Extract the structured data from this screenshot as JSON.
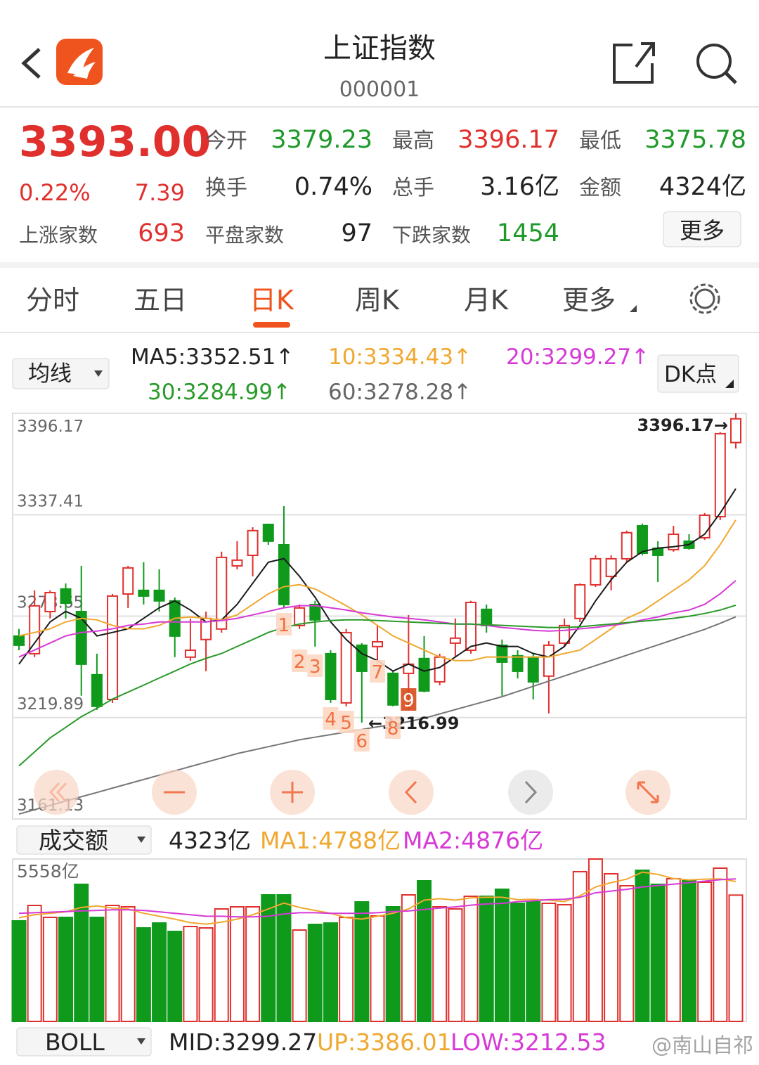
{
  "header": {
    "title": "上证指数",
    "code": "000001"
  },
  "quote": {
    "price": "3393.00",
    "change_pct": "0.22%",
    "change": "7.39",
    "stats": [
      {
        "label": "今开",
        "value": "3379.23"
      },
      {
        "label": "最高",
        "value": "3396.17"
      },
      {
        "label": "最低",
        "value": "3375.78"
      },
      {
        "label": "换手",
        "value": "0.74%"
      },
      {
        "label": "总手",
        "value": "3.16亿"
      },
      {
        "label": "金额",
        "value": "4324亿"
      },
      {
        "label": "上涨家数",
        "value": "693"
      },
      {
        "label": "平盘家数",
        "value": "97"
      },
      {
        "label": "下跌家数",
        "value": "1454"
      }
    ],
    "more": "更多"
  },
  "tabs": [
    "分时",
    "五日",
    "日K",
    "周K",
    "月K",
    "更多"
  ],
  "indicator_row": {
    "selector": "均线",
    "ma_labels": [
      "MA5:3352.51↑",
      "10:3334.43↑",
      "20:3299.27↑",
      "30:3284.99↑",
      "60:3278.28↑"
    ],
    "dk": "DK点"
  },
  "volume_row": {
    "selector": "成交额",
    "labels": [
      "4323亿",
      "MA1:4788亿",
      "MA2:4876亿"
    ]
  },
  "boll_row": {
    "selector": "BOLL",
    "labels": [
      "MID:3299.27",
      "UP:3386.01",
      "LOW:3212.53"
    ]
  },
  "watermark": "@南山自祁",
  "chart_data": [
    {
      "type": "candlestick",
      "ylim": [
        3161.13,
        3396.17
      ],
      "yticks": [
        3396.17,
        3337.41,
        3278.65,
        3219.89,
        3161.13
      ],
      "grid": true,
      "up_color": "#e0302d",
      "down_color": "#0f9a1c",
      "open": [
        3267.1,
        3256.9,
        3281.3,
        3294.4,
        3281.3,
        3244.7,
        3230.4,
        3291.5,
        3293.6,
        3293.6,
        3287.5,
        3254.9,
        3265.1,
        3271.2,
        3307.8,
        3313.9,
        3331.8,
        3320.0,
        3273.2,
        3285.4,
        3256.9,
        3228.4,
        3261.8,
        3261.0,
        3245.5,
        3245.5,
        3254.1,
        3240.6,
        3263.0,
        3258.9,
        3282.6,
        3261.8,
        3255.7,
        3254.9,
        3243.9,
        3263.0,
        3277.3,
        3296.8,
        3301.7,
        3311.9,
        3331.0,
        3318.0,
        3317.2,
        3322.1,
        3324.1,
        3336.3,
        3379.23
      ],
      "high": [
        3271.2,
        3293.6,
        3293.6,
        3297.6,
        3307.8,
        3256.9,
        3291.5,
        3307.8,
        3309.9,
        3305.8,
        3289.5,
        3277.3,
        3281.3,
        3316.0,
        3322.1,
        3330.2,
        3332.3,
        3342.4,
        3285.4,
        3287.5,
        3258.9,
        3271.2,
        3263.0,
        3273.2,
        3246.7,
        3279.3,
        3267.1,
        3256.9,
        3277.3,
        3287.5,
        3285.4,
        3265.1,
        3258.9,
        3256.9,
        3264.2,
        3277.3,
        3297.6,
        3313.9,
        3313.9,
        3328.2,
        3332.3,
        3322.1,
        3331.0,
        3326.1,
        3338.4,
        3385.2,
        3396.17
      ],
      "low": [
        3258.9,
        3254.9,
        3277.3,
        3277.3,
        3232.5,
        3224.3,
        3228.4,
        3283.4,
        3285.4,
        3281.3,
        3254.9,
        3252.8,
        3246.7,
        3269.1,
        3305.8,
        3301.7,
        3320.0,
        3283.4,
        3271.2,
        3261.0,
        3228.4,
        3226.4,
        3216.99,
        3250.8,
        3226.4,
        3224.3,
        3234.5,
        3238.6,
        3254.9,
        3256.9,
        3269.1,
        3232.5,
        3242.6,
        3230.4,
        3222.3,
        3261.0,
        3275.2,
        3295.6,
        3293.6,
        3309.9,
        3313.9,
        3298.4,
        3316.0,
        3317.2,
        3322.9,
        3334.3,
        3375.78
      ],
      "close": [
        3261.8,
        3284.6,
        3292.3,
        3286.2,
        3250.8,
        3226.4,
        3290.3,
        3306.6,
        3290.3,
        3287.5,
        3267.1,
        3258.9,
        3277.3,
        3312.7,
        3311.1,
        3328.2,
        3322.1,
        3285.4,
        3283.4,
        3276.5,
        3230.4,
        3269.1,
        3246.7,
        3263.8,
        3227.2,
        3250.8,
        3235.3,
        3254.9,
        3265.9,
        3286.6,
        3273.2,
        3252.0,
        3246.7,
        3240.6,
        3261.8,
        3273.2,
        3296.8,
        3311.9,
        3311.9,
        3327.0,
        3315.1,
        3313.9,
        3326.1,
        3318.0,
        3337.1,
        3384.4,
        3393
      ],
      "lines": [
        {
          "color": "#1a1a1a",
          "values": [
            3250.9,
            3263.1,
            3275.3,
            3281.4,
            3277.4,
            3267.2,
            3269.2,
            3271.3,
            3277.4,
            3283.5,
            3287.5,
            3282.2,
            3275.3,
            3276.5,
            3285.5,
            3297.7,
            3309.9,
            3312.0,
            3301.8,
            3289.6,
            3275.3,
            3265.1,
            3257.0,
            3252.9,
            3246.8,
            3250.9,
            3246.8,
            3248.9,
            3255.0,
            3261.1,
            3263.1,
            3261.1,
            3261.1,
            3257.0,
            3255.0,
            3261.1,
            3273.3,
            3287.5,
            3299.7,
            3309.9,
            3316.0,
            3318.1,
            3318.9,
            3320.1,
            3326.2,
            3338.4,
            3352.51
          ]
        },
        {
          "color": "#f0a830",
          "values": [
            3267.2,
            3269.2,
            3271.3,
            3275.3,
            3277.4,
            3276.5,
            3273.3,
            3271.3,
            3271.3,
            3273.3,
            3277.4,
            3278.2,
            3277.4,
            3276.5,
            3279.4,
            3285.5,
            3291.6,
            3295.7,
            3296.9,
            3294.4,
            3289.6,
            3284.7,
            3279.4,
            3273.3,
            3267.2,
            3263.1,
            3259.0,
            3255.0,
            3252.9,
            3252.9,
            3255.0,
            3255.0,
            3255.0,
            3255.0,
            3255.0,
            3257.0,
            3259.0,
            3265.1,
            3271.3,
            3277.4,
            3281.4,
            3287.5,
            3293.6,
            3299.7,
            3307.9,
            3320.1,
            3334.43
          ]
        },
        {
          "color": "#d63ad6",
          "values": [
            3255.0,
            3259.0,
            3263.1,
            3267.2,
            3269.2,
            3270.0,
            3271.3,
            3273.3,
            3274.1,
            3275.3,
            3275.3,
            3275.3,
            3275.3,
            3276.1,
            3277.4,
            3279.4,
            3281.4,
            3283.5,
            3284.7,
            3284.7,
            3283.5,
            3282.2,
            3280.6,
            3279.4,
            3278.2,
            3277.4,
            3276.5,
            3275.3,
            3274.1,
            3274.1,
            3273.3,
            3272.1,
            3271.3,
            3270.4,
            3270.0,
            3270.4,
            3271.3,
            3272.1,
            3273.3,
            3274.5,
            3276.5,
            3278.2,
            3280.6,
            3282.2,
            3285.5,
            3291.6,
            3299.27
          ]
        },
        {
          "color": "#2a9a2a",
          "values": [
            3191.9,
            3200.0,
            3208.1,
            3214.2,
            3220.4,
            3225.3,
            3230.6,
            3234.6,
            3238.7,
            3242.8,
            3246.8,
            3250.9,
            3254.2,
            3257.0,
            3261.1,
            3265.1,
            3269.2,
            3272.1,
            3274.1,
            3275.3,
            3276.1,
            3276.5,
            3276.5,
            3276.1,
            3275.7,
            3275.3,
            3274.9,
            3274.5,
            3274.1,
            3274.1,
            3273.7,
            3273.3,
            3272.9,
            3272.5,
            3272.1,
            3272.1,
            3272.5,
            3273.3,
            3274.1,
            3274.9,
            3275.7,
            3276.5,
            3277.4,
            3278.6,
            3280.2,
            3282.2,
            3284.99
          ]
        },
        {
          "color": "#777777",
          "values": [
            3164.0,
            3166.5,
            3169.0,
            3171.5,
            3174.0,
            3176.5,
            3179.0,
            3181.5,
            3184.0,
            3186.5,
            3189.0,
            3191.5,
            3194.0,
            3196.5,
            3199.0,
            3201.0,
            3203.0,
            3205.0,
            3207.0,
            3208.5,
            3210.0,
            3211.5,
            3213.0,
            3214.5,
            3216.0,
            3217.5,
            3219.5,
            3222.0,
            3224.5,
            3227.0,
            3229.5,
            3232.0,
            3235.0,
            3238.0,
            3241.0,
            3244.0,
            3247.0,
            3250.0,
            3253.0,
            3256.0,
            3259.0,
            3262.0,
            3265.0,
            3268.0,
            3271.0,
            3274.5,
            3278.28
          ]
        }
      ],
      "annotations": [
        "3396.17→",
        "←3216.99"
      ],
      "count_labels": [
        "1",
        "2",
        "3",
        "4",
        "5",
        "6",
        "7",
        "8",
        "9"
      ]
    },
    {
      "type": "bar",
      "ylim": [
        0,
        5558
      ],
      "yticks": [
        {
          "value": 5558,
          "label": "5558亿"
        }
      ],
      "values": [
        3441,
        3970,
        3561,
        3561,
        4692,
        3561,
        3970,
        3922,
        3200,
        3368,
        3080,
        3248,
        3200,
        3850,
        3922,
        3922,
        4331,
        4331,
        3128,
        3320,
        3368,
        3561,
        4090,
        3609,
        3922,
        4331,
        4812,
        3922,
        3850,
        4283,
        4283,
        4523,
        4042,
        4090,
        4042,
        3994,
        5125,
        5558,
        5053,
        4644,
        5173,
        4692,
        4884,
        4812,
        4764,
        5245,
        4323
      ],
      "lines": [
        {
          "color": "#f0a830",
          "values": [
            3550,
            3650,
            3700,
            3750,
            3900,
            3950,
            3880,
            3850,
            3700,
            3600,
            3500,
            3380,
            3330,
            3400,
            3500,
            3650,
            3850,
            4050,
            3900,
            3800,
            3700,
            3550,
            3500,
            3600,
            3700,
            3850,
            4150,
            4200,
            4150,
            4230,
            4250,
            4250,
            4170,
            4180,
            4150,
            4100,
            4300,
            4600,
            4750,
            4870,
            5110,
            5030,
            4890,
            4840,
            4870,
            4880,
            4788
          ]
        },
        {
          "color": "#d63ad6",
          "values": [
            3700,
            3720,
            3740,
            3760,
            3780,
            3800,
            3820,
            3820,
            3800,
            3750,
            3700,
            3650,
            3600,
            3600,
            3580,
            3580,
            3600,
            3680,
            3720,
            3720,
            3700,
            3700,
            3700,
            3720,
            3760,
            3780,
            3830,
            3880,
            3920,
            3980,
            4020,
            4040,
            4100,
            4130,
            4170,
            4180,
            4250,
            4400,
            4460,
            4520,
            4600,
            4650,
            4700,
            4750,
            4800,
            4850,
            4876
          ]
        }
      ]
    }
  ]
}
